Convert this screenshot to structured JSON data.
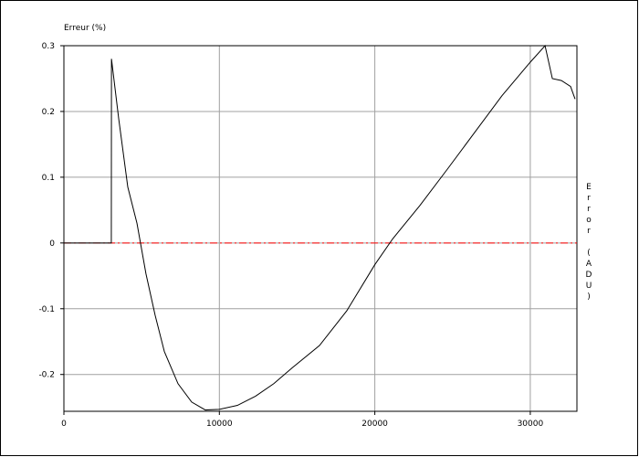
{
  "chart_data": {
    "type": "line",
    "y_label": "Erreur (%)",
    "y2_label": "Error (ADU)",
    "x": [
      0,
      3050,
      3060,
      3520,
      4110,
      4700,
      5280,
      5870,
      6460,
      7340,
      8220,
      9100,
      10000,
      11160,
      12330,
      13500,
      14680,
      16440,
      18200,
      20000,
      21140,
      22900,
      24660,
      26420,
      28180,
      30000,
      30950,
      31420,
      32000,
      32590,
      32880
    ],
    "series": [
      {
        "color": "#000000",
        "values": [
          0,
          0,
          0.28,
          0.19,
          0.085,
          0.03,
          -0.047,
          -0.11,
          -0.165,
          -0.214,
          -0.242,
          -0.254,
          -0.253,
          -0.247,
          -0.233,
          -0.214,
          -0.19,
          -0.156,
          -0.103,
          -0.033,
          0.006,
          0.057,
          0.112,
          0.168,
          0.224,
          0.275,
          0.3,
          0.25,
          0.247,
          0.238,
          0.219
        ]
      }
    ],
    "reference_line": {
      "value": 0,
      "color": "#ff0000"
    },
    "xlim": [
      0,
      33000
    ],
    "ylim": [
      -0.256,
      0.3
    ],
    "xticks": [
      0,
      10000,
      20000,
      30000
    ],
    "yticks": [
      -0.2,
      -0.1,
      0,
      0.1,
      0.2,
      0.3
    ],
    "grid": true,
    "grid_color": "#a0a0a0"
  }
}
